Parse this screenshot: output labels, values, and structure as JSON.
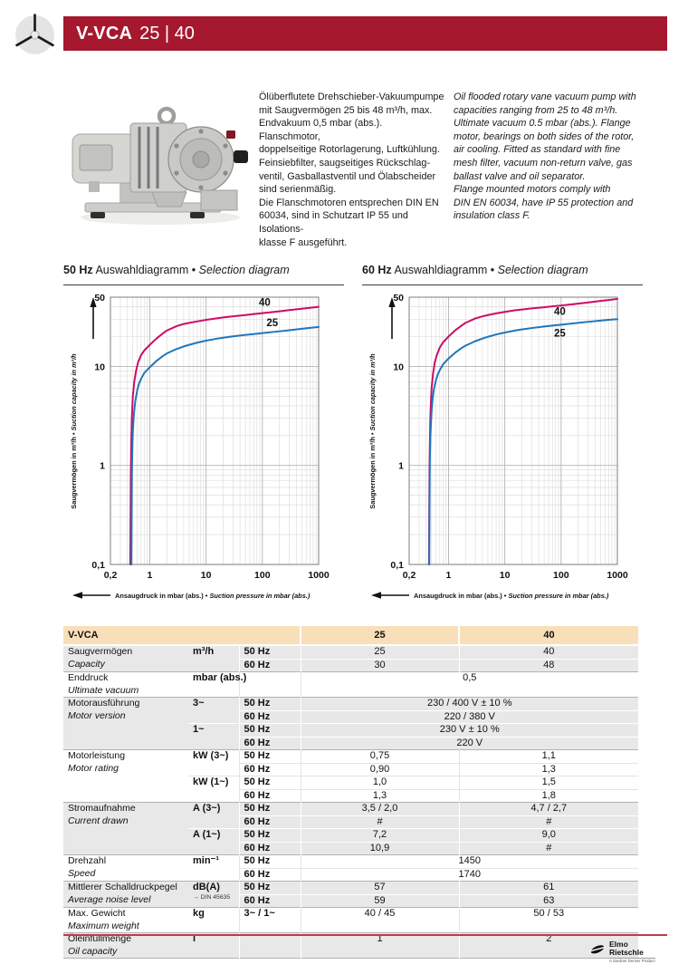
{
  "header": {
    "title_bold": "V-VCA",
    "title_rest": "25 | 40",
    "banner_color": "#a6182e",
    "icon": "rotor-icon"
  },
  "description": {
    "german": "Ölüberflutete Drehschieber-Vakuumpumpe\nmit Saugvermögen 25 bis 48 m³/h, max.\nEndvakuum 0,5 mbar (abs.). Flanschmotor,\ndoppelseitige Rotorlagerung, Luftkühlung.\nFeinsiebfilter, saugseitiges Rückschlag-\nventil, Gasballastventil und Ölabscheider\nsind serienmäßig.\nDie Flanschmotoren entsprechen DIN EN\n60034, sind in Schutzart IP 55 und Isolations-\nklasse F ausgeführt.",
    "english": "Oil flooded rotary vane vacuum pump with\ncapacities ranging from 25 to 48 m³/h.\nUltimate vacuum 0.5 mbar (abs.). Flange\nmotor, bearings on both sides of the rotor,\nair cooling. Fitted as standard with fine\nmesh filter, vacuum non-return valve, gas\nballast valve and oil separator.\nFlange mounted motors comply with\nDIN EN 60034, have IP 55 protection and\ninsulation class F."
  },
  "charts": [
    {
      "title_bold": "50 Hz",
      "title_mid": "Auswahldiagramm •",
      "title_italic": "Selection diagram"
    },
    {
      "title_bold": "60 Hz",
      "title_mid": "Auswahldiagramm •",
      "title_italic": "Selection diagram"
    }
  ],
  "chart_data": [
    {
      "type": "line",
      "title": "50 Hz Auswahldiagramm • Selection diagram",
      "xlabel_de": "Ansaugdruck in mbar (abs.)",
      "xlabel_en": "Suction pressure in mbar (abs.)",
      "ylabel_de": "Saugvermögen in m³/h",
      "ylabel_en": "Suction capacity in m³/h",
      "xscale": "log",
      "yscale": "log",
      "xlim": [
        0.2,
        1000
      ],
      "ylim": [
        0.1,
        50
      ],
      "x_tick_values": [
        0.2,
        1,
        10,
        100,
        1000
      ],
      "x_tick_labels": [
        "0,2",
        "1",
        "10",
        "100",
        "1000"
      ],
      "y_tick_values": [
        50,
        10,
        1,
        0.1
      ],
      "y_tick_labels": [
        "50",
        "10",
        "1",
        "0,1"
      ],
      "grid": true,
      "series": [
        {
          "name": "40",
          "color": "#cf0a66",
          "label_pos": [
            110,
            41
          ],
          "points": [
            [
              0.45,
              0.1
            ],
            [
              0.455,
              0.3
            ],
            [
              0.46,
              0.8
            ],
            [
              0.47,
              1.8
            ],
            [
              0.48,
              3
            ],
            [
              0.5,
              5
            ],
            [
              0.53,
              7
            ],
            [
              0.57,
              9
            ],
            [
              0.62,
              11
            ],
            [
              0.7,
              13
            ],
            [
              0.8,
              14.5
            ],
            [
              1,
              16.5
            ],
            [
              1.3,
              19
            ],
            [
              1.7,
              21.5
            ],
            [
              2,
              23
            ],
            [
              3,
              25.5
            ],
            [
              4,
              26.8
            ],
            [
              5,
              27.5
            ],
            [
              7,
              28.5
            ],
            [
              10,
              29.5
            ],
            [
              15,
              30.5
            ],
            [
              20,
              31.2
            ],
            [
              30,
              32
            ],
            [
              50,
              33
            ],
            [
              70,
              33.8
            ],
            [
              100,
              34.5
            ],
            [
              200,
              36
            ],
            [
              300,
              37
            ],
            [
              500,
              38.2
            ],
            [
              700,
              39
            ],
            [
              1000,
              40
            ]
          ]
        },
        {
          "name": "25",
          "color": "#1f76bc",
          "label_pos": [
            150,
            25.5
          ],
          "points": [
            [
              0.47,
              0.1
            ],
            [
              0.475,
              0.3
            ],
            [
              0.48,
              0.8
            ],
            [
              0.49,
              1.5
            ],
            [
              0.5,
              2.2
            ],
            [
              0.52,
              3.2
            ],
            [
              0.55,
              4.4
            ],
            [
              0.6,
              5.8
            ],
            [
              0.65,
              6.8
            ],
            [
              0.7,
              7.5
            ],
            [
              0.8,
              8.6
            ],
            [
              1,
              9.8
            ],
            [
              1.3,
              11.3
            ],
            [
              1.7,
              12.7
            ],
            [
              2,
              13.5
            ],
            [
              3,
              15
            ],
            [
              4,
              15.9
            ],
            [
              5,
              16.5
            ],
            [
              7,
              17.4
            ],
            [
              10,
              18.2
            ],
            [
              15,
              19
            ],
            [
              20,
              19.5
            ],
            [
              30,
              20.1
            ],
            [
              50,
              20.8
            ],
            [
              70,
              21.2
            ],
            [
              100,
              21.7
            ],
            [
              200,
              22.6
            ],
            [
              300,
              23.2
            ],
            [
              500,
              24
            ],
            [
              700,
              24.5
            ],
            [
              1000,
              25
            ]
          ]
        }
      ]
    },
    {
      "type": "line",
      "title": "60 Hz Auswahldiagramm • Selection diagram",
      "xlabel_de": "Ansaugdruck in mbar (abs.)",
      "xlabel_en": "Suction pressure in mbar (abs.)",
      "ylabel_de": "Saugvermögen in m³/h",
      "ylabel_en": "Suction capacity in m³/h",
      "xscale": "log",
      "yscale": "log",
      "xlim": [
        0.2,
        1000
      ],
      "ylim": [
        0.1,
        50
      ],
      "x_tick_values": [
        0.2,
        1,
        10,
        100,
        1000
      ],
      "x_tick_labels": [
        "0,2",
        "1",
        "10",
        "100",
        "1000"
      ],
      "y_tick_values": [
        50,
        10,
        1,
        0.1
      ],
      "y_tick_labels": [
        "50",
        "10",
        "1",
        "0,1"
      ],
      "grid": true,
      "series": [
        {
          "name": "40",
          "color": "#cf0a66",
          "label_pos": [
            95,
            33
          ],
          "points": [
            [
              0.45,
              0.1
            ],
            [
              0.455,
              0.4
            ],
            [
              0.46,
              1
            ],
            [
              0.47,
              2.2
            ],
            [
              0.48,
              3.6
            ],
            [
              0.5,
              6
            ],
            [
              0.53,
              8.4
            ],
            [
              0.57,
              11
            ],
            [
              0.62,
              13
            ],
            [
              0.7,
              15.5
            ],
            [
              0.8,
              17.5
            ],
            [
              1,
              20
            ],
            [
              1.3,
              23
            ],
            [
              1.7,
              25.8
            ],
            [
              2,
              27.5
            ],
            [
              3,
              30.5
            ],
            [
              4,
              32
            ],
            [
              5,
              33
            ],
            [
              7,
              34.3
            ],
            [
              10,
              35.5
            ],
            [
              15,
              36.8
            ],
            [
              20,
              37.5
            ],
            [
              30,
              38.5
            ],
            [
              50,
              39.6
            ],
            [
              70,
              40.4
            ],
            [
              100,
              41.2
            ],
            [
              200,
              43
            ],
            [
              300,
              44.2
            ],
            [
              500,
              45.8
            ],
            [
              700,
              46.8
            ],
            [
              1000,
              48
            ]
          ]
        },
        {
          "name": "25",
          "color": "#1f76bc",
          "label_pos": [
            95,
            20
          ],
          "points": [
            [
              0.455,
              0.1
            ],
            [
              0.46,
              0.4
            ],
            [
              0.465,
              1
            ],
            [
              0.475,
              2
            ],
            [
              0.49,
              2.8
            ],
            [
              0.5,
              3.5
            ],
            [
              0.52,
              4.6
            ],
            [
              0.55,
              5.9
            ],
            [
              0.6,
              7.3
            ],
            [
              0.65,
              8.4
            ],
            [
              0.7,
              9.2
            ],
            [
              0.8,
              10.5
            ],
            [
              1,
              12
            ],
            [
              1.3,
              13.7
            ],
            [
              1.7,
              15.3
            ],
            [
              2,
              16.2
            ],
            [
              3,
              18
            ],
            [
              4,
              19.1
            ],
            [
              5,
              19.9
            ],
            [
              7,
              21
            ],
            [
              10,
              22
            ],
            [
              15,
              23
            ],
            [
              20,
              23.6
            ],
            [
              30,
              24.4
            ],
            [
              50,
              25.3
            ],
            [
              70,
              25.8
            ],
            [
              100,
              26.4
            ],
            [
              200,
              27.5
            ],
            [
              300,
              28.2
            ],
            [
              500,
              29
            ],
            [
              700,
              29.5
            ],
            [
              1000,
              30
            ]
          ]
        }
      ]
    }
  ],
  "table": {
    "header": {
      "product": "V-VCA",
      "col_25": "25",
      "col_40": "40"
    },
    "blocks": [
      {
        "label_de": "Saugvermögen",
        "label_en": "Capacity",
        "shade": "gray",
        "units": [
          {
            "unit": "m³/h",
            "rows": [
              {
                "freq": "50 Hz",
                "v25": "25",
                "v40": "40"
              },
              {
                "freq": "60 Hz",
                "v25": "30",
                "v40": "48"
              }
            ]
          }
        ]
      },
      {
        "label_de": "Enddruck",
        "label_en": "Ultimate vacuum",
        "shade": "white",
        "units": [
          {
            "unit": "mbar (abs.)",
            "rows": [
              {
                "freq": "",
                "value": "0,5",
                "span": true,
                "tall": true
              }
            ]
          }
        ]
      },
      {
        "label_de": "Motorausführung",
        "label_en": "Motor version",
        "shade": "gray",
        "units": [
          {
            "unit": "3~",
            "rows": [
              {
                "freq": "50 Hz",
                "value": "230 / 400 V ± 10 %",
                "span": true
              },
              {
                "freq": "60 Hz",
                "value": "220 / 380 V",
                "span": true
              }
            ]
          },
          {
            "unit": "1~",
            "rows": [
              {
                "freq": "50 Hz",
                "value": "230 V ± 10 %",
                "span": true
              },
              {
                "freq": "60 Hz",
                "value": "220 V",
                "span": true
              }
            ]
          }
        ]
      },
      {
        "label_de": "Motorleistung",
        "label_en": "Motor rating",
        "shade": "white",
        "units": [
          {
            "unit": "kW (3~)",
            "rows": [
              {
                "freq": "50 Hz",
                "v25": "0,75",
                "v40": "1,1"
              },
              {
                "freq": "60 Hz",
                "v25": "0,90",
                "v40": "1,3"
              }
            ]
          },
          {
            "unit": "kW (1~)",
            "rows": [
              {
                "freq": "50 Hz",
                "v25": "1,0",
                "v40": "1,5"
              },
              {
                "freq": "60 Hz",
                "v25": "1,3",
                "v40": "1,8"
              }
            ]
          }
        ]
      },
      {
        "label_de": "Stromaufnahme",
        "label_en": "Current drawn",
        "shade": "gray",
        "units": [
          {
            "unit": "A (3~)",
            "rows": [
              {
                "freq": "50 Hz",
                "v25": "3,5 / 2,0",
                "v40": "4,7 / 2,7"
              },
              {
                "freq": "60 Hz",
                "v25": "#",
                "v40": "#"
              }
            ]
          },
          {
            "unit": "A (1~)",
            "rows": [
              {
                "freq": "50 Hz",
                "v25": "7,2",
                "v40": "9,0"
              },
              {
                "freq": "60 Hz",
                "v25": "10,9",
                "v40": "#"
              }
            ]
          }
        ]
      },
      {
        "label_de": "Drehzahl",
        "label_en": "Speed",
        "shade": "white",
        "units": [
          {
            "unit": "min⁻¹",
            "rows": [
              {
                "freq": "50 Hz",
                "value": "1450",
                "span": true
              },
              {
                "freq": "60 Hz",
                "value": "1740",
                "span": true
              }
            ]
          }
        ]
      },
      {
        "label_de": "Mittlerer Schalldruckpegel",
        "label_en": "Average noise level",
        "shade": "gray",
        "units": [
          {
            "unit": "dB(A)",
            "unit_sub": "→ DIN 45635",
            "rows": [
              {
                "freq": "50 Hz",
                "v25": "57",
                "v40": "61"
              },
              {
                "freq": "60 Hz",
                "v25": "59",
                "v40": "63"
              }
            ]
          }
        ]
      },
      {
        "label_de": "Max. Gewicht",
        "label_en": "Maximum weight",
        "shade": "white",
        "units": [
          {
            "unit": "kg",
            "rows": [
              {
                "freq": "3~ / 1~",
                "v25": "40 / 45",
                "v40": "50 / 53",
                "tall": true
              }
            ]
          }
        ]
      },
      {
        "label_de": "Öleinfüllmenge",
        "label_en": "Oil capacity",
        "shade": "gray",
        "units": [
          {
            "unit": "l",
            "rows": [
              {
                "freq": "",
                "v25": "1",
                "v40": "2",
                "tall": true
              }
            ]
          }
        ]
      }
    ]
  },
  "footer": {
    "logo_line1": "Elmo",
    "logo_line2": "Rietschle",
    "logo_tagline": "A Gardner Denver Product"
  }
}
